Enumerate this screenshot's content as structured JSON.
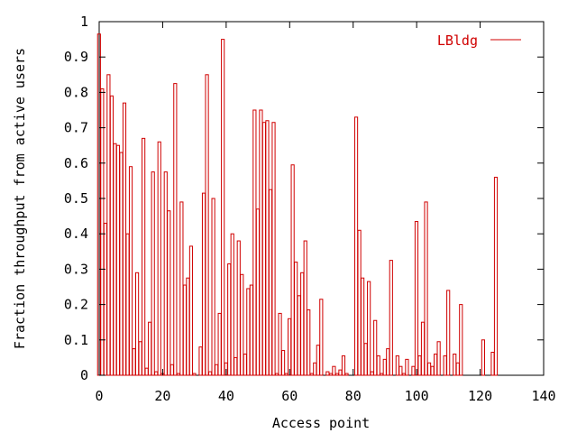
{
  "chart_data": {
    "type": "bar",
    "style": "impulse-outline",
    "xlabel": "Access point",
    "ylabel": "Fraction throughput from active users",
    "xlim": [
      0,
      140
    ],
    "ylim": [
      0,
      1
    ],
    "xticks": [
      "0",
      "20",
      "40",
      "60",
      "80",
      "100",
      "120",
      "140"
    ],
    "yticks": [
      "0",
      "0.1",
      "0.2",
      "0.3",
      "0.4",
      "0.5",
      "0.6",
      "0.7",
      "0.8",
      "0.9",
      "1"
    ],
    "grid": false,
    "legend_position": "top-right",
    "series": [
      {
        "name": "LBldg",
        "color": "#d00000",
        "x": [
          0,
          1,
          2,
          3,
          4,
          5,
          6,
          7,
          8,
          9,
          10,
          11,
          12,
          13,
          14,
          15,
          16,
          17,
          18,
          19,
          20,
          21,
          22,
          23,
          24,
          25,
          26,
          27,
          28,
          29,
          30,
          31,
          32,
          33,
          34,
          35,
          36,
          37,
          38,
          39,
          40,
          41,
          42,
          43,
          44,
          45,
          46,
          47,
          48,
          49,
          50,
          51,
          52,
          53,
          54,
          55,
          56,
          57,
          58,
          59,
          60,
          61,
          62,
          63,
          64,
          65,
          66,
          67,
          68,
          69,
          70,
          71,
          72,
          73,
          74,
          75,
          76,
          77,
          78,
          79,
          80,
          81,
          82,
          83,
          84,
          85,
          86,
          87,
          88,
          89,
          90,
          91,
          92,
          93,
          94,
          95,
          96,
          97,
          98,
          99,
          100,
          101,
          102,
          103,
          104,
          105,
          106,
          107,
          108,
          109,
          110,
          111,
          112,
          113,
          114,
          115,
          116,
          117,
          118,
          119,
          120,
          121,
          122,
          123,
          124,
          125,
          126,
          127
        ],
        "values": [
          0.965,
          0.81,
          0.43,
          0.85,
          0.79,
          0.655,
          0.65,
          0.63,
          0.77,
          0.4,
          0.59,
          0.075,
          0.29,
          0.095,
          0.67,
          0.02,
          0.15,
          0.575,
          0.01,
          0.66,
          0.005,
          0.575,
          0.465,
          0.03,
          0.825,
          0.005,
          0.49,
          0.255,
          0.275,
          0.365,
          0.005,
          0.0,
          0.08,
          0.515,
          0.85,
          0.01,
          0.5,
          0.03,
          0.175,
          0.95,
          0.035,
          0.315,
          0.4,
          0.05,
          0.38,
          0.285,
          0.06,
          0.245,
          0.255,
          0.75,
          0.47,
          0.75,
          0.715,
          0.72,
          0.525,
          0.715,
          0.005,
          0.175,
          0.07,
          0.005,
          0.16,
          0.595,
          0.32,
          0.225,
          0.29,
          0.38,
          0.185,
          0.005,
          0.035,
          0.085,
          0.215,
          0.0,
          0.01,
          0.005,
          0.025,
          0.005,
          0.015,
          0.055,
          0.005,
          0.0,
          0.0,
          0.73,
          0.41,
          0.275,
          0.09,
          0.265,
          0.01,
          0.155,
          0.055,
          0.005,
          0.045,
          0.075,
          0.325,
          0.0,
          0.055,
          0.025,
          0.005,
          0.045,
          0.0,
          0.025,
          0.435,
          0.055,
          0.15,
          0.49,
          0.035,
          0.025,
          0.06,
          0.095,
          0.0,
          0.055,
          0.24,
          0.0,
          0.06,
          0.035,
          0.2,
          0.0,
          0.0,
          0.0,
          0.0,
          0.0,
          0.0,
          0.1,
          0.0,
          0.0,
          0.065,
          0.56,
          0.0,
          0.0
        ]
      }
    ]
  }
}
